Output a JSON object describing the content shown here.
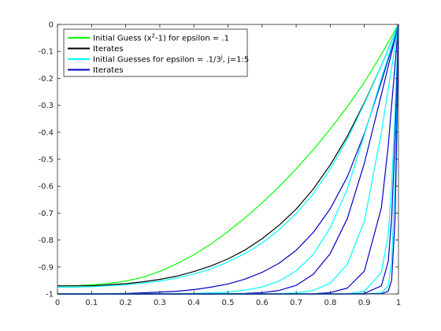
{
  "chart_data": {
    "type": "line",
    "title": "",
    "xlabel": "",
    "ylabel": "",
    "xlim": [
      0,
      1
    ],
    "ylim": [
      -1,
      0
    ],
    "grid": false,
    "legend_placement": "top-left",
    "x_ticks": [
      "0",
      "0.1",
      "0.2",
      "0.3",
      "0.4",
      "0.5",
      "0.6",
      "0.7",
      "0.8",
      "0.9",
      "1"
    ],
    "y_ticks": [
      "0",
      "-0.1",
      "-0.2",
      "-0.3",
      "-0.4",
      "-0.5",
      "-0.6",
      "-0.7",
      "-0.8",
      "-0.9",
      "-1"
    ],
    "legend": [
      {
        "pre": "Initial Guess (x",
        "sup": "2",
        "post": "-1) for epsilon = .1",
        "color": "#00ff00"
      },
      {
        "pre": "Iterates",
        "sup": "",
        "post": "",
        "color": "#000000"
      },
      {
        "pre": "Initial Guesses for epsilon = .1/3",
        "sup": "j",
        "post": ", j=1:5",
        "color": "#00ffff"
      },
      {
        "pre": "Iterates",
        "sup": "",
        "post": "",
        "color": "#0000c8"
      }
    ],
    "x": [
      0,
      0.05,
      0.1,
      0.15,
      0.2,
      0.25,
      0.3,
      0.35,
      0.4,
      0.45,
      0.5,
      0.55,
      0.6,
      0.65,
      0.7,
      0.75,
      0.8,
      0.85,
      0.9,
      0.95,
      0.97,
      0.98,
      0.99,
      0.995,
      1
    ],
    "series": [
      {
        "group": "initial-eps-0.1",
        "color": "#00ff00",
        "values": [
          -0.97,
          -0.97,
          -0.966,
          -0.961,
          -0.952,
          -0.938,
          -0.916,
          -0.888,
          -0.855,
          -0.815,
          -0.768,
          -0.718,
          -0.662,
          -0.602,
          -0.536,
          -0.465,
          -0.388,
          -0.305,
          -0.215,
          -0.111,
          -0.066,
          -0.044,
          -0.022,
          -0.011,
          0
        ]
      },
      {
        "group": "iterates-eps-0.1",
        "color": "#000000",
        "values": [
          -0.97,
          -0.97,
          -0.97,
          -0.966,
          -0.962,
          -0.955,
          -0.946,
          -0.934,
          -0.917,
          -0.896,
          -0.87,
          -0.837,
          -0.795,
          -0.745,
          -0.685,
          -0.611,
          -0.521,
          -0.415,
          -0.29,
          -0.153,
          -0.092,
          -0.061,
          -0.031,
          -0.015,
          0
        ]
      },
      {
        "group": "initial-guesses",
        "color": "#00ffff",
        "values": [
          -0.975,
          -0.975,
          -0.973,
          -0.97,
          -0.966,
          -0.96,
          -0.952,
          -0.941,
          -0.926,
          -0.907,
          -0.881,
          -0.85,
          -0.811,
          -0.762,
          -0.702,
          -0.628,
          -0.536,
          -0.425,
          -0.294,
          -0.153,
          -0.092,
          -0.061,
          -0.031,
          -0.015,
          0
        ]
      },
      {
        "group": "iterates",
        "color": "#0000c8",
        "values": [
          -1,
          -1,
          -1,
          -0.999,
          -0.998,
          -0.996,
          -0.993,
          -0.99,
          -0.984,
          -0.975,
          -0.963,
          -0.945,
          -0.92,
          -0.886,
          -0.838,
          -0.772,
          -0.684,
          -0.565,
          -0.405,
          -0.213,
          -0.13,
          -0.087,
          -0.044,
          -0.022,
          0
        ]
      },
      {
        "group": "initial-guesses",
        "color": "#00ffff",
        "values": [
          -1,
          -1,
          -1,
          -1,
          -1,
          -1,
          -1,
          -0.999,
          -0.998,
          -0.996,
          -0.993,
          -0.986,
          -0.974,
          -0.952,
          -0.915,
          -0.853,
          -0.754,
          -0.61,
          -0.41,
          -0.2,
          -0.12,
          -0.08,
          -0.04,
          -0.02,
          0
        ]
      },
      {
        "group": "iterates",
        "color": "#0000c8",
        "values": [
          -1,
          -1,
          -1,
          -1,
          -1,
          -1,
          -1,
          -1,
          -1,
          -1,
          -0.999,
          -0.998,
          -0.995,
          -0.987,
          -0.968,
          -0.927,
          -0.85,
          -0.72,
          -0.515,
          -0.26,
          -0.156,
          -0.104,
          -0.052,
          -0.026,
          0
        ]
      },
      {
        "group": "initial-guesses",
        "color": "#00ffff",
        "values": [
          -1,
          -1,
          -1,
          -1,
          -1,
          -1,
          -1,
          -1,
          -1,
          -1,
          -1,
          -1,
          -1,
          -0.999,
          -0.996,
          -0.987,
          -0.96,
          -0.89,
          -0.73,
          -0.4,
          -0.24,
          -0.16,
          -0.08,
          -0.04,
          0
        ]
      },
      {
        "group": "iterates",
        "color": "#0000c8",
        "values": [
          -1,
          -1,
          -1,
          -1,
          -1,
          -1,
          -1,
          -1,
          -1,
          -1,
          -1,
          -1,
          -1,
          -1,
          -1,
          -0.999,
          -0.995,
          -0.978,
          -0.915,
          -0.68,
          -0.45,
          -0.3,
          -0.15,
          -0.075,
          0
        ]
      },
      {
        "group": "initial-guesses",
        "color": "#00ffff",
        "values": [
          -1,
          -1,
          -1,
          -1,
          -1,
          -1,
          -1,
          -1,
          -1,
          -1,
          -1,
          -1,
          -1,
          -1,
          -1,
          -1,
          -1,
          -0.999,
          -0.99,
          -0.92,
          -0.78,
          -0.6,
          -0.32,
          -0.16,
          0
        ]
      },
      {
        "group": "iterates",
        "color": "#0000c8",
        "values": [
          -1,
          -1,
          -1,
          -1,
          -1,
          -1,
          -1,
          -1,
          -1,
          -1,
          -1,
          -1,
          -1,
          -1,
          -1,
          -1,
          -1,
          -1,
          -0.998,
          -0.97,
          -0.88,
          -0.72,
          -0.42,
          -0.22,
          0
        ]
      },
      {
        "group": "initial-guesses",
        "color": "#00ffff",
        "values": [
          -1,
          -1,
          -1,
          -1,
          -1,
          -1,
          -1,
          -1,
          -1,
          -1,
          -1,
          -1,
          -1,
          -1,
          -1,
          -1,
          -1,
          -1,
          -1,
          -0.996,
          -0.97,
          -0.88,
          -0.58,
          -0.32,
          0
        ]
      },
      {
        "group": "iterates",
        "color": "#0000c8",
        "values": [
          -1,
          -1,
          -1,
          -1,
          -1,
          -1,
          -1,
          -1,
          -1,
          -1,
          -1,
          -1,
          -1,
          -1,
          -1,
          -1,
          -1,
          -1,
          -1,
          -0.999,
          -0.99,
          -0.95,
          -0.72,
          -0.42,
          0
        ]
      }
    ]
  }
}
